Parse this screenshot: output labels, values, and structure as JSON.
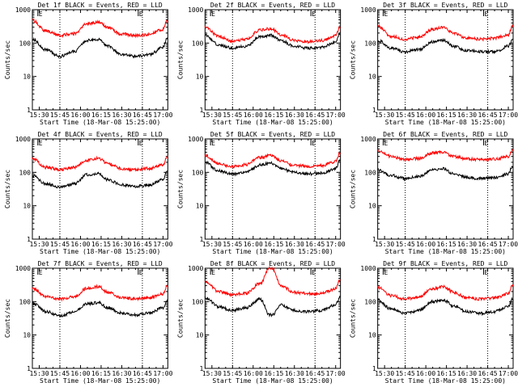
{
  "chart_data": [
    {
      "type": "line",
      "title": "Det 1f BLACK = Events, RED = LLD",
      "xlabel": "Start Time (18-Mar-08 15:25:00)",
      "ylabel": "Counts/sec",
      "y_scale": "log",
      "ylim": [
        1,
        1000
      ],
      "x_ticks": [
        "15:30",
        "15:45",
        "16:00",
        "16:15",
        "16:30",
        "16:45",
        "17:00"
      ],
      "y_ticks": [
        "1",
        "10",
        "100",
        "1000"
      ],
      "markers": [
        "E",
        "E"
      ],
      "colors": {
        "events": "#000000",
        "lld": "#ff0000"
      },
      "series": [
        {
          "name": "BLACK = Events",
          "x": [
            "15:25",
            "15:35",
            "15:45",
            "15:55",
            "16:05",
            "16:13",
            "16:20",
            "16:30",
            "16:40",
            "16:50",
            "17:00",
            "17:03"
          ],
          "values": [
            130,
            62,
            40,
            55,
            120,
            130,
            80,
            45,
            40,
            45,
            75,
            135
          ]
        },
        {
          "name": "RED = LLD",
          "x": [
            "15:25",
            "15:35",
            "15:45",
            "15:55",
            "16:05",
            "16:13",
            "16:20",
            "16:30",
            "16:40",
            "16:50",
            "17:00",
            "17:03"
          ],
          "values": [
            480,
            230,
            170,
            190,
            380,
            420,
            290,
            185,
            170,
            180,
            260,
            450
          ]
        }
      ]
    },
    {
      "type": "line",
      "title": "Det 2f BLACK = Events, RED = LLD",
      "xlabel": "Start Time (18-Mar-08 15:25:00)",
      "ylabel": "Counts/sec",
      "y_scale": "log",
      "ylim": [
        1,
        1000
      ],
      "x_ticks": [
        "15:30",
        "15:45",
        "16:00",
        "16:15",
        "16:30",
        "16:45",
        "17:00"
      ],
      "y_ticks": [
        "1",
        "10",
        "100",
        "1000"
      ],
      "markers": [
        "E",
        "E"
      ],
      "colors": {
        "events": "#000000",
        "lld": "#ff0000"
      },
      "series": [
        {
          "name": "BLACK = Events",
          "x": [
            "15:25",
            "15:35",
            "15:45",
            "15:55",
            "16:05",
            "16:13",
            "16:20",
            "16:30",
            "16:40",
            "16:50",
            "17:00",
            "17:03"
          ],
          "values": [
            170,
            90,
            70,
            80,
            160,
            170,
            120,
            80,
            70,
            75,
            110,
            190
          ]
        },
        {
          "name": "RED = LLD",
          "x": [
            "15:25",
            "15:35",
            "15:45",
            "15:55",
            "16:05",
            "16:13",
            "16:20",
            "16:30",
            "16:40",
            "16:50",
            "17:00",
            "17:03"
          ],
          "values": [
            300,
            160,
            110,
            130,
            250,
            270,
            180,
            120,
            110,
            120,
            170,
            310
          ]
        }
      ]
    },
    {
      "type": "line",
      "title": "Det 3f BLACK = Events, RED = LLD",
      "xlabel": "Start Time (18-Mar-08 15:25:00)",
      "ylabel": "Counts/sec",
      "y_scale": "log",
      "ylim": [
        1,
        1000
      ],
      "x_ticks": [
        "15:30",
        "15:45",
        "16:00",
        "16:15",
        "16:30",
        "16:45",
        "17:00"
      ],
      "y_ticks": [
        "1",
        "10",
        "100",
        "1000"
      ],
      "markers": [
        "E",
        "E"
      ],
      "colors": {
        "events": "#000000",
        "lld": "#ff0000"
      },
      "series": [
        {
          "name": "BLACK = Events",
          "x": [
            "15:25",
            "15:35",
            "15:45",
            "15:55",
            "16:05",
            "16:13",
            "16:20",
            "16:30",
            "16:40",
            "16:50",
            "17:00",
            "17:03"
          ],
          "values": [
            120,
            70,
            55,
            65,
            110,
            120,
            80,
            60,
            55,
            55,
            80,
            120
          ]
        },
        {
          "name": "RED = LLD",
          "x": [
            "15:25",
            "15:35",
            "15:45",
            "15:55",
            "16:05",
            "16:13",
            "16:20",
            "16:30",
            "16:40",
            "16:50",
            "17:00",
            "17:03"
          ],
          "values": [
            320,
            160,
            130,
            150,
            260,
            300,
            200,
            140,
            130,
            140,
            180,
            330
          ]
        }
      ]
    },
    {
      "type": "line",
      "title": "Det 4f BLACK = Events, RED = LLD",
      "xlabel": "Start Time (18-Mar-08 15:25:00)",
      "ylabel": "Counts/sec",
      "y_scale": "log",
      "ylim": [
        1,
        1000
      ],
      "x_ticks": [
        "15:30",
        "15:45",
        "16:00",
        "16:15",
        "16:30",
        "16:45",
        "17:00"
      ],
      "y_ticks": [
        "1",
        "10",
        "100",
        "1000"
      ],
      "markers": [
        "E",
        "E"
      ],
      "colors": {
        "events": "#000000",
        "lld": "#ff0000"
      },
      "series": [
        {
          "name": "BLACK = Events",
          "x": [
            "15:25",
            "15:35",
            "15:45",
            "15:55",
            "16:05",
            "16:13",
            "16:20",
            "16:30",
            "16:40",
            "16:50",
            "17:00",
            "17:03"
          ],
          "values": [
            80,
            45,
            35,
            45,
            85,
            90,
            60,
            42,
            38,
            42,
            60,
            110
          ]
        },
        {
          "name": "RED = LLD",
          "x": [
            "15:25",
            "15:35",
            "15:45",
            "15:55",
            "16:05",
            "16:13",
            "16:20",
            "16:30",
            "16:40",
            "16:50",
            "17:00",
            "17:03"
          ],
          "values": [
            260,
            140,
            120,
            140,
            230,
            260,
            180,
            130,
            120,
            130,
            170,
            300
          ]
        }
      ]
    },
    {
      "type": "line",
      "title": "Det 5f BLACK = Events, RED = LLD",
      "xlabel": "Start Time (18-Mar-08 15:25:00)",
      "ylabel": "Counts/sec",
      "y_scale": "log",
      "ylim": [
        1,
        1000
      ],
      "x_ticks": [
        "15:30",
        "15:45",
        "16:00",
        "16:15",
        "16:30",
        "16:45",
        "17:00"
      ],
      "y_ticks": [
        "1",
        "10",
        "100",
        "1000"
      ],
      "markers": [
        "E",
        "E"
      ],
      "colors": {
        "events": "#000000",
        "lld": "#ff0000"
      },
      "series": [
        {
          "name": "BLACK = Events",
          "x": [
            "15:25",
            "15:35",
            "15:45",
            "15:55",
            "16:05",
            "16:13",
            "16:20",
            "16:30",
            "16:40",
            "16:50",
            "17:00",
            "17:03"
          ],
          "values": [
            200,
            110,
            90,
            100,
            170,
            190,
            130,
            100,
            90,
            95,
            130,
            220
          ]
        },
        {
          "name": "RED = LLD",
          "x": [
            "15:25",
            "15:35",
            "15:45",
            "15:55",
            "16:05",
            "16:13",
            "16:20",
            "16:30",
            "16:40",
            "16:50",
            "17:00",
            "17:03"
          ],
          "values": [
            320,
            180,
            150,
            170,
            280,
            320,
            220,
            160,
            150,
            160,
            210,
            380
          ]
        }
      ]
    },
    {
      "type": "line",
      "title": "Det 6f BLACK = Events, RED = LLD",
      "xlabel": "Start Time (18-Mar-08 15:25:00)",
      "ylabel": "Counts/sec",
      "y_scale": "log",
      "ylim": [
        1,
        1000
      ],
      "x_ticks": [
        "15:30",
        "15:45",
        "16:00",
        "16:15",
        "16:30",
        "16:45",
        "17:00"
      ],
      "y_ticks": [
        "1",
        "10",
        "100",
        "1000"
      ],
      "markers": [
        "E",
        "E"
      ],
      "colors": {
        "events": "#000000",
        "lld": "#ff0000"
      },
      "series": [
        {
          "name": "BLACK = Events",
          "x": [
            "15:25",
            "15:35",
            "15:45",
            "15:55",
            "16:05",
            "16:13",
            "16:20",
            "16:30",
            "16:40",
            "16:50",
            "17:00",
            "17:03"
          ],
          "values": [
            120,
            80,
            65,
            75,
            120,
            130,
            90,
            70,
            65,
            70,
            90,
            150
          ]
        },
        {
          "name": "RED = LLD",
          "x": [
            "15:25",
            "15:35",
            "15:45",
            "15:55",
            "16:05",
            "16:13",
            "16:20",
            "16:30",
            "16:40",
            "16:50",
            "17:00",
            "17:03"
          ],
          "values": [
            450,
            300,
            240,
            260,
            380,
            400,
            300,
            250,
            240,
            250,
            300,
            480
          ]
        }
      ]
    },
    {
      "type": "line",
      "title": "Det 7f BLACK = Events, RED = LLD",
      "xlabel": "Start Time (18-Mar-08 15:25:00)",
      "ylabel": "Counts/sec",
      "y_scale": "log",
      "ylim": [
        1,
        1000
      ],
      "x_ticks": [
        "15:30",
        "15:45",
        "16:00",
        "16:15",
        "16:30",
        "16:45",
        "17:00"
      ],
      "y_ticks": [
        "1",
        "10",
        "100",
        "1000"
      ],
      "markers": [
        "E",
        "E"
      ],
      "colors": {
        "events": "#000000",
        "lld": "#ff0000"
      },
      "series": [
        {
          "name": "BLACK = Events",
          "x": [
            "15:25",
            "15:35",
            "15:45",
            "15:55",
            "16:05",
            "16:13",
            "16:20",
            "16:30",
            "16:40",
            "16:50",
            "17:00",
            "17:03"
          ],
          "values": [
            90,
            50,
            38,
            48,
            85,
            95,
            65,
            45,
            40,
            45,
            65,
            110
          ]
        },
        {
          "name": "RED = LLD",
          "x": [
            "15:25",
            "15:35",
            "15:45",
            "15:55",
            "16:05",
            "16:13",
            "16:20",
            "16:30",
            "16:40",
            "16:50",
            "17:00",
            "17:03"
          ],
          "values": [
            250,
            140,
            120,
            140,
            250,
            280,
            190,
            130,
            120,
            130,
            170,
            300
          ]
        }
      ]
    },
    {
      "type": "line",
      "title": "Det 8f BLACK = Events, RED = LLD",
      "xlabel": "Start Time (18-Mar-08 15:25:00)",
      "ylabel": "Counts/sec",
      "y_scale": "log",
      "ylim": [
        1,
        1000
      ],
      "x_ticks": [
        "15:30",
        "15:45",
        "16:00",
        "16:15",
        "16:30",
        "16:45",
        "17:00"
      ],
      "y_ticks": [
        "1",
        "10",
        "100",
        "1000"
      ],
      "markers": [
        "E",
        "E"
      ],
      "colors": {
        "events": "#000000",
        "lld": "#ff0000"
      },
      "series": [
        {
          "name": "BLACK = Events",
          "x": [
            "15:25",
            "15:35",
            "15:45",
            "15:55",
            "16:05",
            "16:12",
            "16:14",
            "16:20",
            "16:30",
            "16:40",
            "16:50",
            "17:00",
            "17:03"
          ],
          "values": [
            130,
            70,
            55,
            65,
            120,
            40,
            40,
            80,
            55,
            50,
            55,
            80,
            130
          ]
        },
        {
          "name": "RED = LLD",
          "x": [
            "15:25",
            "15:35",
            "15:45",
            "15:55",
            "16:05",
            "16:12",
            "16:14",
            "16:20",
            "16:30",
            "16:40",
            "16:50",
            "17:00",
            "17:03"
          ],
          "values": [
            400,
            200,
            160,
            180,
            350,
            1000,
            1000,
            300,
            190,
            170,
            180,
            240,
            420
          ]
        }
      ]
    },
    {
      "type": "line",
      "title": "Det 9f BLACK = Events, RED = LLD",
      "xlabel": "Start Time (18-Mar-08 15:25:00)",
      "ylabel": "Counts/sec",
      "y_scale": "log",
      "ylim": [
        1,
        1000
      ],
      "x_ticks": [
        "15:30",
        "15:45",
        "16:00",
        "16:15",
        "16:30",
        "16:45",
        "17:00"
      ],
      "y_ticks": [
        "1",
        "10",
        "100",
        "1000"
      ],
      "markers": [
        "E",
        "E"
      ],
      "colors": {
        "events": "#000000",
        "lld": "#ff0000"
      },
      "series": [
        {
          "name": "BLACK = Events",
          "x": [
            "15:25",
            "15:35",
            "15:45",
            "15:55",
            "16:05",
            "16:13",
            "16:20",
            "16:30",
            "16:40",
            "16:50",
            "17:00",
            "17:03"
          ],
          "values": [
            110,
            60,
            45,
            55,
            100,
            110,
            75,
            50,
            45,
            50,
            70,
            120
          ]
        },
        {
          "name": "RED = LLD",
          "x": [
            "15:25",
            "15:35",
            "15:45",
            "15:55",
            "16:05",
            "16:13",
            "16:20",
            "16:30",
            "16:40",
            "16:50",
            "17:00",
            "17:03"
          ],
          "values": [
            270,
            150,
            120,
            140,
            240,
            280,
            190,
            130,
            120,
            130,
            170,
            300
          ]
        }
      ]
    }
  ]
}
